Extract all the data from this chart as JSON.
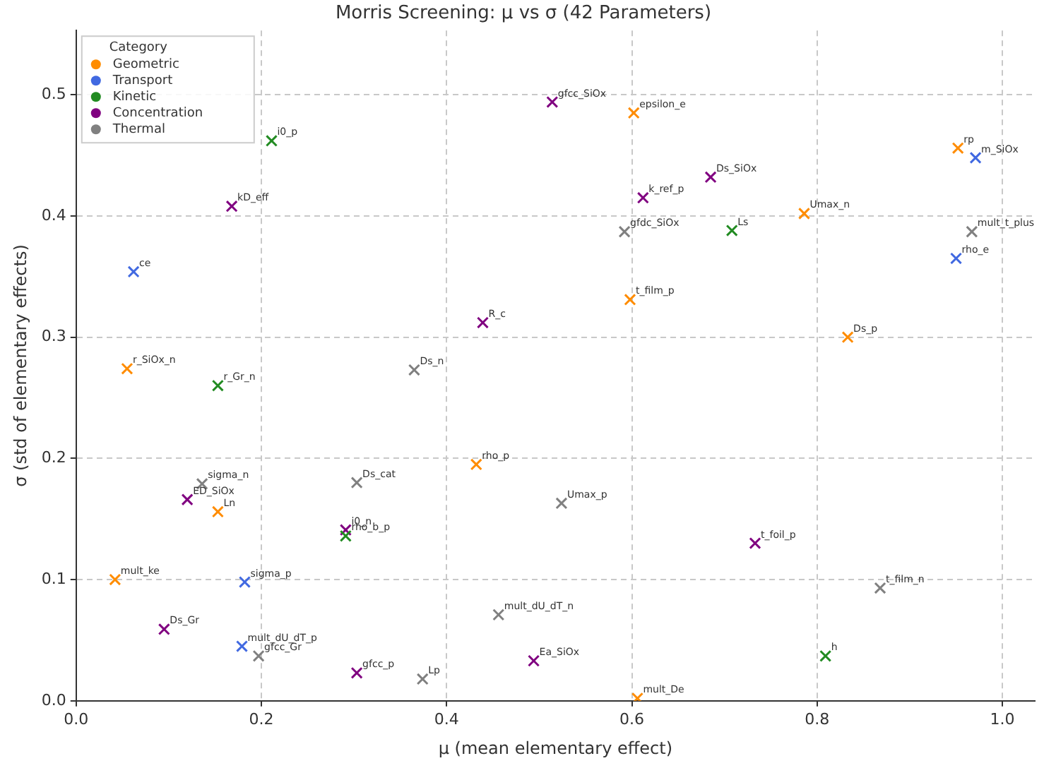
{
  "chart_data": {
    "type": "scatter",
    "title": "Morris Screening: μ vs σ (42 Parameters)",
    "xlabel": "μ (mean elementary effect)",
    "ylabel": "σ (std of elementary effects)",
    "legend_title": "Category",
    "legend": "top left",
    "marker": "cross",
    "grid": true,
    "xlim": [
      0,
      1.035
    ],
    "ylim": [
      0,
      0.553
    ],
    "xticks": [
      {
        "value": 0,
        "label": "0.0"
      },
      {
        "value": 0.2,
        "label": "0.2"
      },
      {
        "value": 0.4,
        "label": "0.4"
      },
      {
        "value": 0.6,
        "label": "0.6"
      },
      {
        "value": 0.8,
        "label": "0.8"
      },
      {
        "value": 1,
        "label": "1.0"
      }
    ],
    "yticks": [
      {
        "value": 0,
        "label": "0.0"
      },
      {
        "value": 0.1,
        "label": "0.1"
      },
      {
        "value": 0.2,
        "label": "0.2"
      },
      {
        "value": 0.3,
        "label": "0.3"
      },
      {
        "value": 0.4,
        "label": "0.4"
      },
      {
        "value": 0.5,
        "label": "0.5"
      }
    ],
    "series": [
      {
        "name": "Geometric",
        "color": "#ff8c00",
        "x": [
          0.602,
          0.952,
          0.786,
          0.598,
          0.833,
          0.055,
          0.432,
          0.153,
          0.042,
          0.606
        ],
        "values": [
          0.485,
          0.456,
          0.402,
          0.331,
          0.3,
          0.274,
          0.195,
          0.156,
          0.1,
          0.002
        ]
      },
      {
        "name": "Transport",
        "color": "#4169e1",
        "x": [
          0.971,
          0.95,
          0.062,
          0.182,
          0.179
        ],
        "values": [
          0.448,
          0.365,
          0.354,
          0.098,
          0.045
        ]
      },
      {
        "name": "Kinetic",
        "color": "#228b22",
        "x": [
          0.211,
          0.708,
          0.153,
          0.291,
          0.809
        ],
        "values": [
          0.462,
          0.388,
          0.26,
          0.136,
          0.037
        ]
      },
      {
        "name": "Concentration",
        "color": "#800080",
        "x": [
          0.514,
          0.168,
          0.685,
          0.612,
          0.439,
          0.12,
          0.291,
          0.095,
          0.303,
          0.494,
          0.733
        ],
        "values": [
          0.494,
          0.408,
          0.432,
          0.415,
          0.312,
          0.166,
          0.141,
          0.059,
          0.023,
          0.033,
          0.13
        ]
      },
      {
        "name": "Thermal",
        "color": "#808080",
        "x": [
          0.592,
          0.967,
          0.365,
          0.136,
          0.303,
          0.524,
          0.868,
          0.456,
          0.197,
          0.374
        ],
        "values": [
          0.387,
          0.387,
          0.273,
          0.179,
          0.18,
          0.163,
          0.093,
          0.071,
          0.037,
          0.018
        ]
      }
    ],
    "annotations": [
      {
        "text": "epsilon_e",
        "x": 0.602,
        "y": 0.485
      },
      {
        "text": "rp",
        "x": 0.952,
        "y": 0.456
      },
      {
        "text": "Umax_n",
        "x": 0.786,
        "y": 0.402
      },
      {
        "text": "t_film_p",
        "x": 0.598,
        "y": 0.331
      },
      {
        "text": "Ds_p",
        "x": 0.833,
        "y": 0.3
      },
      {
        "text": "r_SiOx_n",
        "x": 0.055,
        "y": 0.274
      },
      {
        "text": "rho_p",
        "x": 0.432,
        "y": 0.195
      },
      {
        "text": "Ln",
        "x": 0.153,
        "y": 0.156
      },
      {
        "text": "mult_ke",
        "x": 0.042,
        "y": 0.1
      },
      {
        "text": "mult_De",
        "x": 0.606,
        "y": 0.002
      },
      {
        "text": "m_SiOx",
        "x": 0.971,
        "y": 0.448
      },
      {
        "text": "rho_e",
        "x": 0.95,
        "y": 0.365
      },
      {
        "text": "ce",
        "x": 0.062,
        "y": 0.354
      },
      {
        "text": "sigma_p",
        "x": 0.182,
        "y": 0.098
      },
      {
        "text": "mult_dU_dT_p",
        "x": 0.179,
        "y": 0.045
      },
      {
        "text": "i0_p",
        "x": 0.211,
        "y": 0.462
      },
      {
        "text": "Ls",
        "x": 0.708,
        "y": 0.388
      },
      {
        "text": "r_Gr_n",
        "x": 0.153,
        "y": 0.26
      },
      {
        "text": "rho_b_p",
        "x": 0.291,
        "y": 0.136
      },
      {
        "text": "h",
        "x": 0.809,
        "y": 0.037
      },
      {
        "text": "gfcc_SiOx",
        "x": 0.514,
        "y": 0.494
      },
      {
        "text": "kD_eff",
        "x": 0.168,
        "y": 0.408
      },
      {
        "text": "Ds_SiOx",
        "x": 0.685,
        "y": 0.432
      },
      {
        "text": "k_ref_p",
        "x": 0.612,
        "y": 0.415
      },
      {
        "text": "R_c",
        "x": 0.439,
        "y": 0.312
      },
      {
        "text": "ED_SiOx",
        "x": 0.12,
        "y": 0.166
      },
      {
        "text": "i0_n",
        "x": 0.291,
        "y": 0.141
      },
      {
        "text": "Ds_Gr",
        "x": 0.095,
        "y": 0.059
      },
      {
        "text": "gfcc_p",
        "x": 0.303,
        "y": 0.023
      },
      {
        "text": "Ea_SiOx",
        "x": 0.494,
        "y": 0.033
      },
      {
        "text": "t_foil_p",
        "x": 0.733,
        "y": 0.13
      },
      {
        "text": "gfdc_SiOx",
        "x": 0.592,
        "y": 0.387
      },
      {
        "text": "mult_t_plus",
        "x": 0.967,
        "y": 0.387
      },
      {
        "text": "Ds_n",
        "x": 0.365,
        "y": 0.273
      },
      {
        "text": "sigma_n",
        "x": 0.136,
        "y": 0.179
      },
      {
        "text": "Ds_cat",
        "x": 0.303,
        "y": 0.18
      },
      {
        "text": "Umax_p",
        "x": 0.524,
        "y": 0.163
      },
      {
        "text": "t_film_n",
        "x": 0.868,
        "y": 0.093
      },
      {
        "text": "mult_dU_dT_n",
        "x": 0.456,
        "y": 0.071
      },
      {
        "text": "gfcc_Gr",
        "x": 0.197,
        "y": 0.037
      },
      {
        "text": "Lp",
        "x": 0.374,
        "y": 0.018
      }
    ]
  }
}
